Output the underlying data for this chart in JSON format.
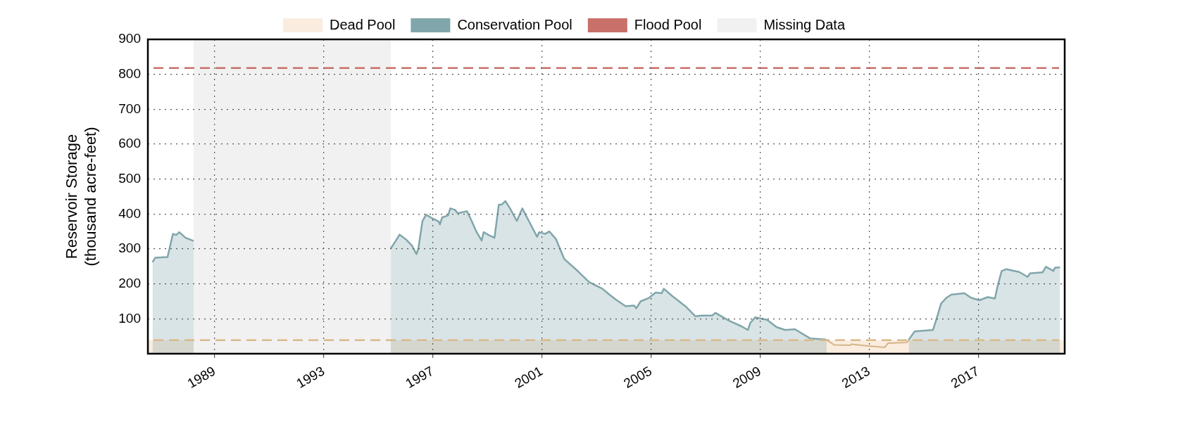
{
  "chart_data": {
    "type": "area",
    "ylabel": "Reservoir Storage\n(thousand acre-feet)",
    "xlim": [
      1986.55,
      2020.17
    ],
    "xticks": [
      1989,
      1993,
      1997,
      2001,
      2005,
      2009,
      2013,
      2017
    ],
    "ylim": [
      0,
      900
    ],
    "yticks": [
      100,
      200,
      300,
      400,
      500,
      600,
      700,
      800,
      900
    ],
    "grid": true,
    "legend": "top",
    "marker": "none",
    "line_style": "solid",
    "series": [
      {
        "name": "Conservation Pool",
        "color": "#80a6ab",
        "x": [
          1986.72,
          1986.82,
          1987.27,
          1987.37,
          1987.47,
          1987.59,
          1987.7,
          1987.93,
          1988.23,
          1991,
          1995.46,
          1995.63,
          1995.78,
          1996.03,
          1996.23,
          1996.4,
          1996.47,
          1996.62,
          1996.75,
          1996.97,
          1997.21,
          1997.26,
          1997.34,
          1997.56,
          1997.64,
          1997.81,
          1997.91,
          1998.25,
          1998.4,
          1998.6,
          1998.79,
          1998.86,
          1999.04,
          1999.26,
          1999.42,
          1999.53,
          1999.66,
          1999.83,
          2000.08,
          2000.28,
          2000.52,
          2000.82,
          2000.9,
          2001.12,
          2001.27,
          2001.51,
          2001.82,
          2002.31,
          2002.73,
          2003.22,
          2003.46,
          2003.71,
          2004.07,
          2004.38,
          2004.46,
          2004.62,
          2004.93,
          2005.17,
          2005.39,
          2005.47,
          2005.78,
          2006.26,
          2006.63,
          2006.87,
          2007.24,
          2007.36,
          2007.85,
          2008.33,
          2008.55,
          2008.64,
          2008.82,
          2009.25,
          2009.61,
          2009.92,
          2010.28,
          2010.83,
          2011.38,
          2011.44,
          2013,
          2014.45,
          2014.67,
          2015.34,
          2015.46,
          2015.64,
          2015.83,
          2016.01,
          2016.49,
          2016.74,
          2017.04,
          2017.35,
          2017.61,
          2017.71,
          2017.86,
          2018.02,
          2018.5,
          2018.81,
          2018.9,
          2019.36,
          2019.48,
          2019.76,
          2019.81,
          2020.0
        ],
        "values": [
          262,
          275,
          277,
          310,
          343,
          340,
          348,
          332,
          323,
          null,
          302,
          322,
          341,
          326,
          310,
          285,
          302,
          380,
          398,
          388,
          379,
          370,
          390,
          396,
          416,
          412,
          402,
          408,
          384,
          349,
          324,
          348,
          340,
          332,
          427,
          427,
          437,
          416,
          380,
          416,
          380,
          335,
          348,
          343,
          350,
          329,
          271,
          237,
          205,
          186,
          170,
          155,
          136,
          138,
          130,
          150,
          160,
          175,
          173,
          186,
          165,
          136,
          107,
          109,
          109,
          117,
          95,
          78,
          68,
          88,
          104,
          97,
          76,
          68,
          70,
          44,
          41,
          39,
          null,
          40,
          64,
          68,
          97,
          144,
          160,
          169,
          173,
          160,
          153,
          162,
          158,
          194,
          237,
          242,
          234,
          220,
          230,
          233,
          249,
          237,
          246,
          247
        ]
      },
      {
        "color": "#d6b48a",
        "type": "line",
        "x": [
          2011.44,
          2011.72,
          2012.29,
          2012.35,
          2012.96,
          2013.57,
          2013.69,
          2014.36,
          2014.42,
          2014.45
        ],
        "values": [
          39,
          25,
          24,
          27,
          22,
          18,
          30,
          32,
          35,
          40
        ]
      }
    ],
    "bands": [
      {
        "axis": "y",
        "from": 0,
        "to": 39,
        "label": "Dead Pool",
        "color": "#faeddf"
      },
      {
        "axis": "x",
        "from": 1988.23,
        "to": 1995.46,
        "label": "Missing Data",
        "color": "#f1f1f1"
      }
    ],
    "ref_lines": [
      {
        "axis": "y",
        "value": 39,
        "color": "#d9b98a",
        "line_style": "dashed"
      },
      {
        "axis": "y",
        "value": 818,
        "label": "Flood Pool",
        "color": "#c9706a",
        "line_style": "dashed"
      }
    ]
  }
}
